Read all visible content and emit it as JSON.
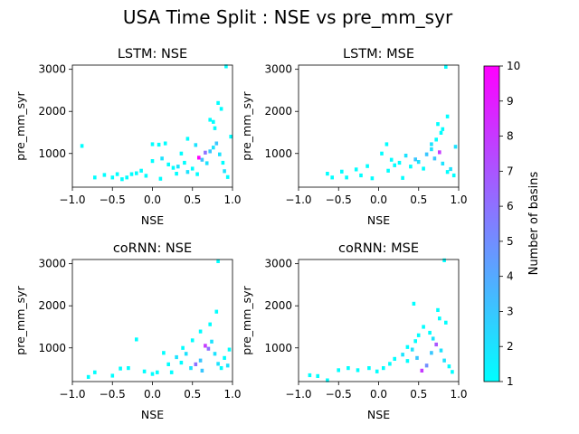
{
  "figure": {
    "title": "USA Time Split : NSE vs pre_mm_syr"
  },
  "chart_data": [
    {
      "type": "heatmap",
      "title": "LSTM: NSE",
      "xlabel": "NSE",
      "ylabel": "pre_mm_syr",
      "xlim": [
        -1.0,
        1.0
      ],
      "ylim": [
        200,
        3100
      ],
      "xticks": [
        "−1.0",
        "−0.5",
        "0.0",
        "0.5",
        "1.0"
      ],
      "yticks": [
        "1000",
        "2000",
        "3000"
      ],
      "cells": [
        [
          -0.88,
          1180,
          1
        ],
        [
          -0.72,
          430,
          1
        ],
        [
          -0.6,
          490,
          1
        ],
        [
          -0.5,
          430,
          1
        ],
        [
          -0.44,
          510,
          1
        ],
        [
          -0.38,
          390,
          1
        ],
        [
          -0.32,
          430,
          1
        ],
        [
          -0.26,
          510,
          1
        ],
        [
          -0.2,
          530,
          1
        ],
        [
          -0.14,
          590,
          1
        ],
        [
          -0.08,
          470,
          1
        ],
        [
          0.0,
          1220,
          1
        ],
        [
          0.08,
          1210,
          1
        ],
        [
          0.16,
          1240,
          1
        ],
        [
          0.0,
          820,
          1
        ],
        [
          0.12,
          880,
          2
        ],
        [
          0.2,
          740,
          1
        ],
        [
          0.26,
          660,
          1
        ],
        [
          0.32,
          690,
          2
        ],
        [
          0.4,
          780,
          1
        ],
        [
          0.44,
          560,
          2
        ],
        [
          0.5,
          640,
          1
        ],
        [
          0.56,
          510,
          1
        ],
        [
          0.62,
          850,
          3
        ],
        [
          0.68,
          770,
          2
        ],
        [
          0.72,
          1050,
          3
        ],
        [
          0.76,
          1140,
          2
        ],
        [
          0.8,
          1240,
          3
        ],
        [
          0.58,
          900,
          10
        ],
        [
          0.66,
          1020,
          6
        ],
        [
          0.84,
          980,
          2
        ],
        [
          0.88,
          780,
          1
        ],
        [
          0.9,
          580,
          2
        ],
        [
          0.94,
          440,
          1
        ],
        [
          0.98,
          1400,
          1
        ],
        [
          0.78,
          1600,
          1
        ],
        [
          0.72,
          1800,
          1
        ],
        [
          0.76,
          1750,
          1
        ],
        [
          0.82,
          2200,
          1
        ],
        [
          0.86,
          2060,
          1
        ],
        [
          0.92,
          3070,
          1
        ],
        [
          0.44,
          1350,
          1
        ],
        [
          0.54,
          1200,
          2
        ],
        [
          0.36,
          1000,
          1
        ],
        [
          0.3,
          520,
          1
        ],
        [
          0.1,
          400,
          1
        ]
      ]
    },
    {
      "type": "heatmap",
      "title": "LSTM: MSE",
      "xlabel": "NSE",
      "ylabel": "pre_mm_syr",
      "xlim": [
        -1.0,
        1.0
      ],
      "ylim": [
        200,
        3100
      ],
      "xticks": [
        "−1.0",
        "−0.5",
        "0.0",
        "0.5",
        "1.0"
      ],
      "yticks": [
        "1000",
        "2000",
        "3000"
      ],
      "cells": [
        [
          -0.64,
          520,
          1
        ],
        [
          -0.58,
          430,
          1
        ],
        [
          -0.46,
          570,
          1
        ],
        [
          -0.4,
          430,
          1
        ],
        [
          -0.28,
          620,
          1
        ],
        [
          -0.22,
          480,
          1
        ],
        [
          -0.14,
          700,
          1
        ],
        [
          -0.08,
          410,
          1
        ],
        [
          0.04,
          1000,
          1
        ],
        [
          0.1,
          1220,
          1
        ],
        [
          0.16,
          850,
          1
        ],
        [
          0.2,
          720,
          1
        ],
        [
          0.26,
          780,
          1
        ],
        [
          0.34,
          950,
          2
        ],
        [
          0.4,
          690,
          1
        ],
        [
          0.46,
          860,
          3
        ],
        [
          0.5,
          800,
          2
        ],
        [
          0.56,
          640,
          1
        ],
        [
          0.6,
          980,
          3
        ],
        [
          0.66,
          1100,
          2
        ],
        [
          0.7,
          880,
          3
        ],
        [
          0.76,
          1030,
          8
        ],
        [
          0.8,
          760,
          2
        ],
        [
          0.86,
          560,
          1
        ],
        [
          0.9,
          630,
          2
        ],
        [
          0.94,
          480,
          1
        ],
        [
          0.66,
          1220,
          2
        ],
        [
          0.72,
          1330,
          1
        ],
        [
          0.78,
          1490,
          1
        ],
        [
          0.74,
          1700,
          1
        ],
        [
          0.8,
          1580,
          1
        ],
        [
          0.86,
          1880,
          1
        ],
        [
          0.84,
          3060,
          1
        ],
        [
          0.96,
          1160,
          2
        ],
        [
          0.3,
          420,
          1
        ],
        [
          0.12,
          590,
          1
        ]
      ]
    },
    {
      "type": "heatmap",
      "title": "coRNN: NSE",
      "xlabel": "NSE",
      "ylabel": "pre_mm_syr",
      "xlim": [
        -1.0,
        1.0
      ],
      "ylim": [
        200,
        3100
      ],
      "xticks": [
        "−1.0",
        "−0.5",
        "0.0",
        "0.5",
        "1.0"
      ],
      "yticks": [
        "1000",
        "2000",
        "3000"
      ],
      "cells": [
        [
          -0.8,
          310,
          1
        ],
        [
          -0.72,
          420,
          1
        ],
        [
          -0.5,
          340,
          1
        ],
        [
          -0.4,
          510,
          1
        ],
        [
          -0.3,
          520,
          1
        ],
        [
          -0.2,
          1200,
          1
        ],
        [
          -0.1,
          440,
          1
        ],
        [
          0.0,
          380,
          1
        ],
        [
          0.06,
          420,
          1
        ],
        [
          0.14,
          880,
          1
        ],
        [
          0.2,
          610,
          1
        ],
        [
          0.3,
          780,
          2
        ],
        [
          0.36,
          650,
          1
        ],
        [
          0.42,
          860,
          2
        ],
        [
          0.48,
          520,
          2
        ],
        [
          0.54,
          610,
          6
        ],
        [
          0.6,
          700,
          3
        ],
        [
          0.66,
          1050,
          8
        ],
        [
          0.7,
          980,
          6
        ],
        [
          0.74,
          1150,
          2
        ],
        [
          0.78,
          860,
          2
        ],
        [
          0.82,
          620,
          2
        ],
        [
          0.86,
          520,
          1
        ],
        [
          0.9,
          760,
          1
        ],
        [
          0.94,
          580,
          2
        ],
        [
          0.5,
          1180,
          1
        ],
        [
          0.6,
          1390,
          1
        ],
        [
          0.72,
          1560,
          1
        ],
        [
          0.8,
          1860,
          1
        ],
        [
          0.82,
          3060,
          1
        ],
        [
          0.96,
          960,
          1
        ],
        [
          0.38,
          1000,
          1
        ],
        [
          0.24,
          420,
          1
        ],
        [
          0.62,
          460,
          3
        ]
      ]
    },
    {
      "type": "heatmap",
      "title": "coRNN: MSE",
      "xlabel": "NSE",
      "ylabel": "pre_mm_syr",
      "xlim": [
        -1.0,
        1.0
      ],
      "ylim": [
        200,
        3100
      ],
      "xticks": [
        "−1.0",
        "−0.5",
        "0.0",
        "0.5",
        "1.0"
      ],
      "yticks": [
        "1000",
        "2000",
        "3000"
      ],
      "cells": [
        [
          -0.86,
          350,
          1
        ],
        [
          -0.76,
          330,
          1
        ],
        [
          -0.64,
          230,
          1
        ],
        [
          -0.5,
          470,
          1
        ],
        [
          -0.38,
          520,
          1
        ],
        [
          -0.26,
          470,
          1
        ],
        [
          -0.12,
          520,
          1
        ],
        [
          -0.02,
          440,
          1
        ],
        [
          0.06,
          520,
          1
        ],
        [
          0.14,
          620,
          1
        ],
        [
          0.2,
          740,
          1
        ],
        [
          0.3,
          840,
          2
        ],
        [
          0.36,
          690,
          1
        ],
        [
          0.42,
          960,
          2
        ],
        [
          0.48,
          760,
          3
        ],
        [
          0.54,
          460,
          8
        ],
        [
          0.6,
          580,
          5
        ],
        [
          0.66,
          880,
          3
        ],
        [
          0.72,
          1080,
          7
        ],
        [
          0.78,
          940,
          2
        ],
        [
          0.82,
          700,
          2
        ],
        [
          0.88,
          560,
          1
        ],
        [
          0.92,
          430,
          1
        ],
        [
          0.46,
          1160,
          1
        ],
        [
          0.5,
          1300,
          1
        ],
        [
          0.56,
          1500,
          1
        ],
        [
          0.64,
          1360,
          1
        ],
        [
          0.76,
          1700,
          1
        ],
        [
          0.84,
          1600,
          1
        ],
        [
          0.74,
          1900,
          1
        ],
        [
          0.44,
          2050,
          1
        ],
        [
          0.82,
          3080,
          1
        ],
        [
          0.36,
          1020,
          1
        ],
        [
          0.68,
          1220,
          2
        ]
      ]
    }
  ],
  "colorbar": {
    "label": "Number of basins",
    "min": 1,
    "max": 10,
    "ticks": [
      "1",
      "2",
      "3",
      "4",
      "5",
      "6",
      "7",
      "8",
      "9",
      "10"
    ],
    "colormap": "cool",
    "color_low": "#00ffff",
    "color_high": "#ff00ff"
  }
}
